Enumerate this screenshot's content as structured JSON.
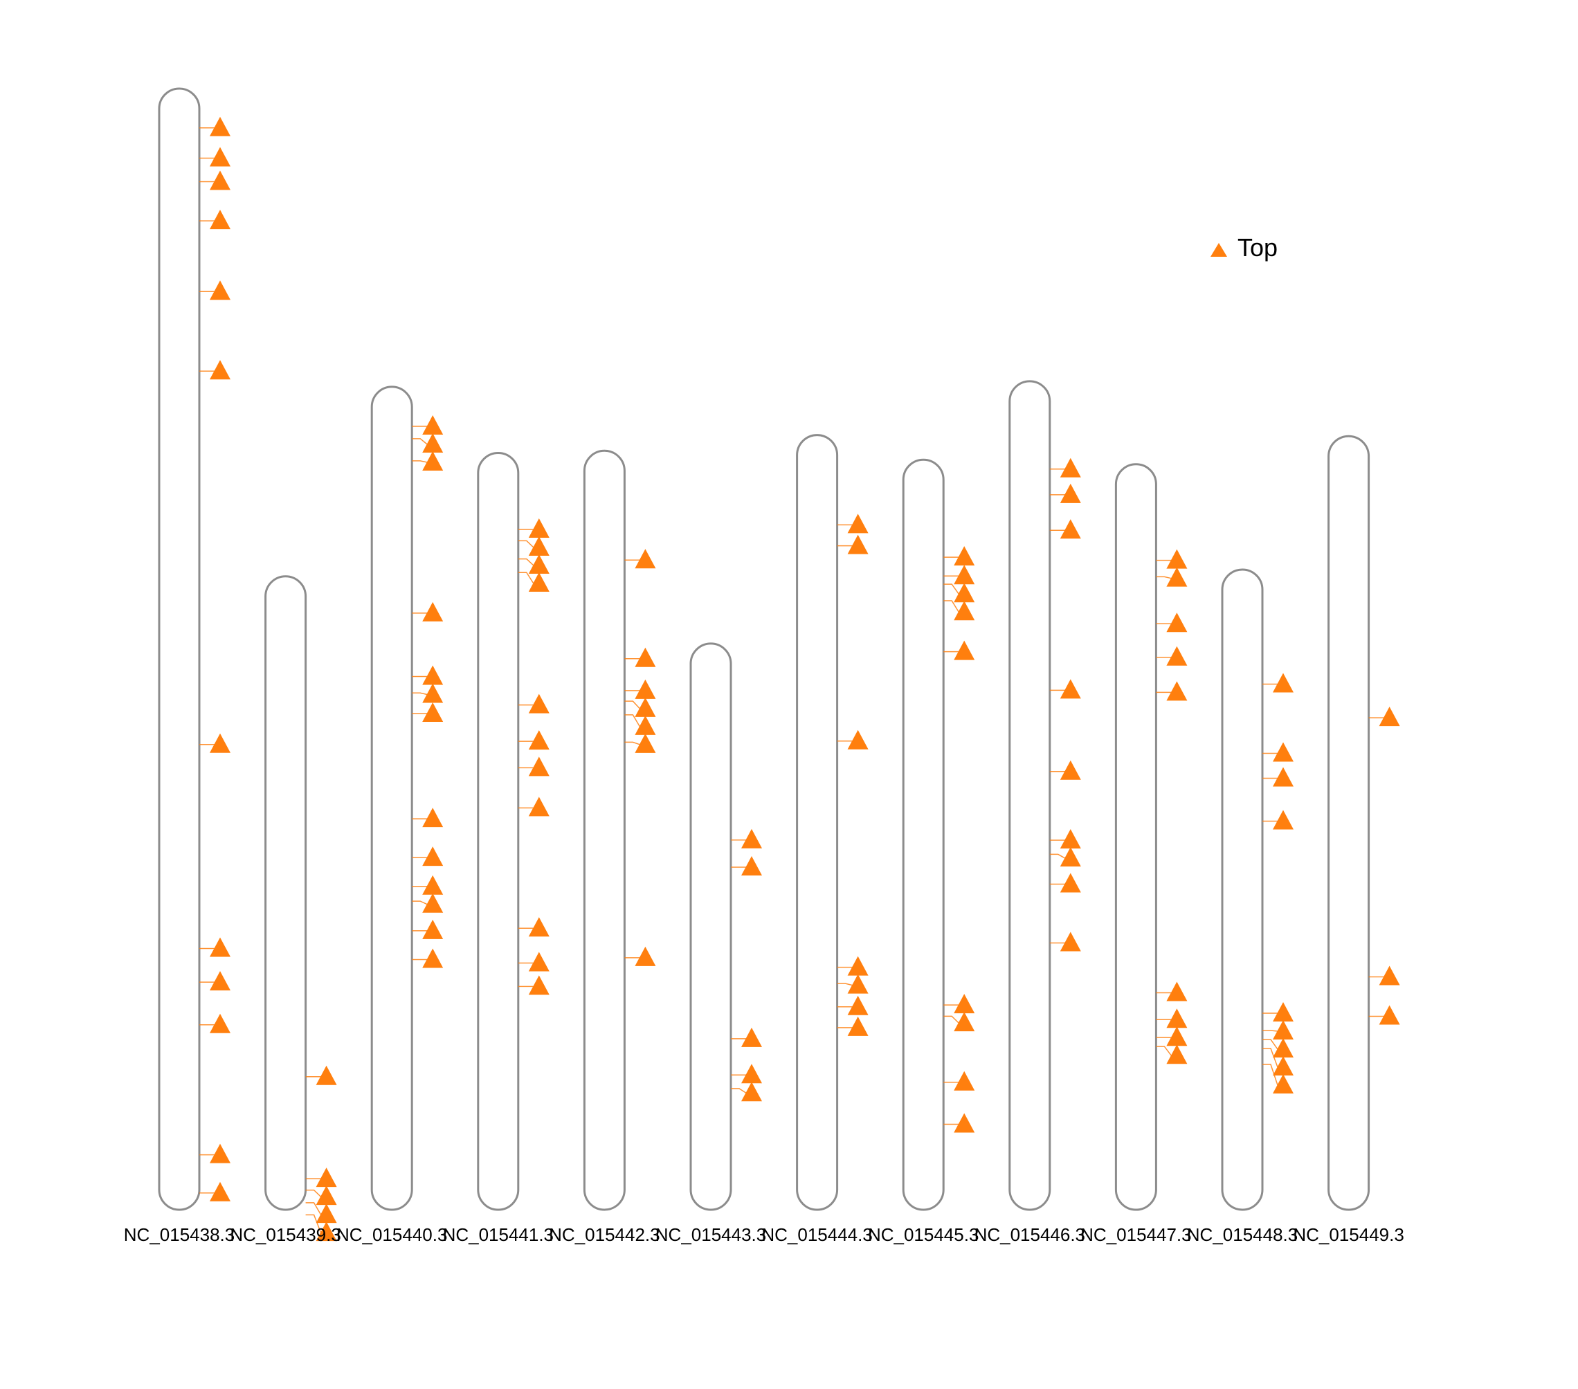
{
  "legend": {
    "label": "Top",
    "color": "#ff7f0e",
    "marker": "triangle-up-icon"
  },
  "colors": {
    "chromosome_outline": "#8c8c8c",
    "marker": "#ff7f0e"
  },
  "chart_data": {
    "type": "chromosome-ideogram",
    "value_unit": "relative position from chromosome top (0 = top, 1 = bottom)",
    "chromosomes": [
      {
        "name": "NC_015438.3",
        "length": 1.0,
        "markers": [
          0.035,
          0.062,
          0.083,
          0.118,
          0.181,
          0.252,
          0.585,
          0.767,
          0.797,
          0.835,
          0.951,
          0.985
        ]
      },
      {
        "name": "NC_015439.3",
        "length": 0.565,
        "markers": [
          0.79,
          0.951,
          0.969,
          0.989,
          1.008
        ]
      },
      {
        "name": "NC_015440.3",
        "length": 0.734,
        "markers": [
          0.048,
          0.063,
          0.09,
          0.275,
          0.352,
          0.372,
          0.397,
          0.525,
          0.572,
          0.607,
          0.625,
          0.661,
          0.696
        ]
      },
      {
        "name": "NC_015441.3",
        "length": 0.675,
        "markers": [
          0.101,
          0.116,
          0.14,
          0.158,
          0.333,
          0.381,
          0.416,
          0.469,
          0.628,
          0.674,
          0.705
        ]
      },
      {
        "name": "NC_015442.3",
        "length": 0.677,
        "markers": [
          0.144,
          0.274,
          0.316,
          0.33,
          0.348,
          0.384,
          0.668
        ]
      },
      {
        "name": "NC_015443.3",
        "length": 0.505,
        "markers": [
          0.347,
          0.395,
          0.698,
          0.762,
          0.786
        ]
      },
      {
        "name": "NC_015444.3",
        "length": 0.691,
        "markers": [
          0.116,
          0.143,
          0.395,
          0.687,
          0.708,
          0.738,
          0.765
        ]
      },
      {
        "name": "NC_015445.3",
        "length": 0.669,
        "markers": [
          0.13,
          0.155,
          0.166,
          0.188,
          0.256,
          0.727,
          0.742,
          0.83,
          0.886
        ]
      },
      {
        "name": "NC_015446.3",
        "length": 0.739,
        "markers": [
          0.106,
          0.137,
          0.18,
          0.373,
          0.471,
          0.554,
          0.571,
          0.607,
          0.678
        ]
      },
      {
        "name": "NC_015447.3",
        "length": 0.665,
        "markers": [
          0.129,
          0.151,
          0.214,
          0.259,
          0.306,
          0.709,
          0.745,
          0.769,
          0.781
        ]
      },
      {
        "name": "NC_015448.3",
        "length": 0.571,
        "markers": [
          0.179,
          0.287,
          0.326,
          0.393,
          0.693,
          0.72,
          0.734,
          0.748,
          0.773
        ]
      },
      {
        "name": "NC_015449.3",
        "length": 0.69,
        "markers": [
          0.364,
          0.699,
          0.75
        ]
      }
    ]
  }
}
